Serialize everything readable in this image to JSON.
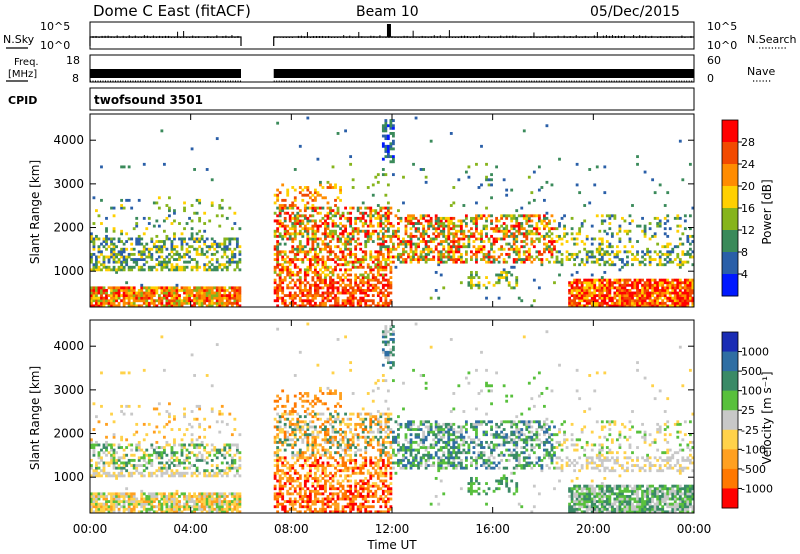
{
  "header": {
    "station": "Dome C East (fitACF)",
    "beam": "Beam 10",
    "date": "05/Dec/2015"
  },
  "labels": {
    "nsky": "N.Sky",
    "nsearch": "N.Search",
    "freq_line1": "Freq.",
    "freq_line2": "[MHz]",
    "nave": "Nave",
    "cpid": "CPID",
    "cpid_value": "twofsound 3501",
    "xlabel": "Time UT",
    "ylabel": "Slant Range [km]",
    "power_cb_label": "Power [dB]",
    "velocity_cb_label": "Velocity [m s⁻¹]"
  },
  "noise_panel": {
    "left_ticks": [
      "10^5",
      "10^0"
    ],
    "right_ticks": [
      "10^5",
      "10^0"
    ]
  },
  "freq_panel": {
    "left_ticks": [
      "18",
      "8"
    ],
    "right_ticks": [
      "60",
      "0"
    ]
  },
  "chart_data": {
    "type": "heatmap",
    "x_ticks": [
      "00:00",
      "04:00",
      "08:00",
      "12:00",
      "16:00",
      "20:00",
      "00:00"
    ],
    "x_range_hours": [
      0,
      24
    ],
    "data_gap_hours": [
      6.0,
      7.3
    ],
    "y_ticks": [
      1000,
      2000,
      3000,
      4000
    ],
    "ylim_km": [
      180,
      4600
    ],
    "power_colorbar": {
      "ticks": [
        "28",
        "24",
        "20",
        "16",
        "12",
        "8",
        "4"
      ],
      "colors": [
        "#ff0000",
        "#f24a00",
        "#ff8c00",
        "#ffd000",
        "#86b41c",
        "#3a8a5a",
        "#2a5fa8",
        "#0018ff"
      ]
    },
    "velocity_colorbar": {
      "ticks": [
        "1000",
        "500",
        "100",
        "25",
        "-25",
        "-100",
        "-500",
        "-1000"
      ],
      "colors": [
        "#1a2cb4",
        "#2f6ea3",
        "#3a8a66",
        "#58c03c",
        "#c8c8c8",
        "#ffd24a",
        "#ffa020",
        "#ff7800",
        "#ff0000"
      ]
    }
  }
}
